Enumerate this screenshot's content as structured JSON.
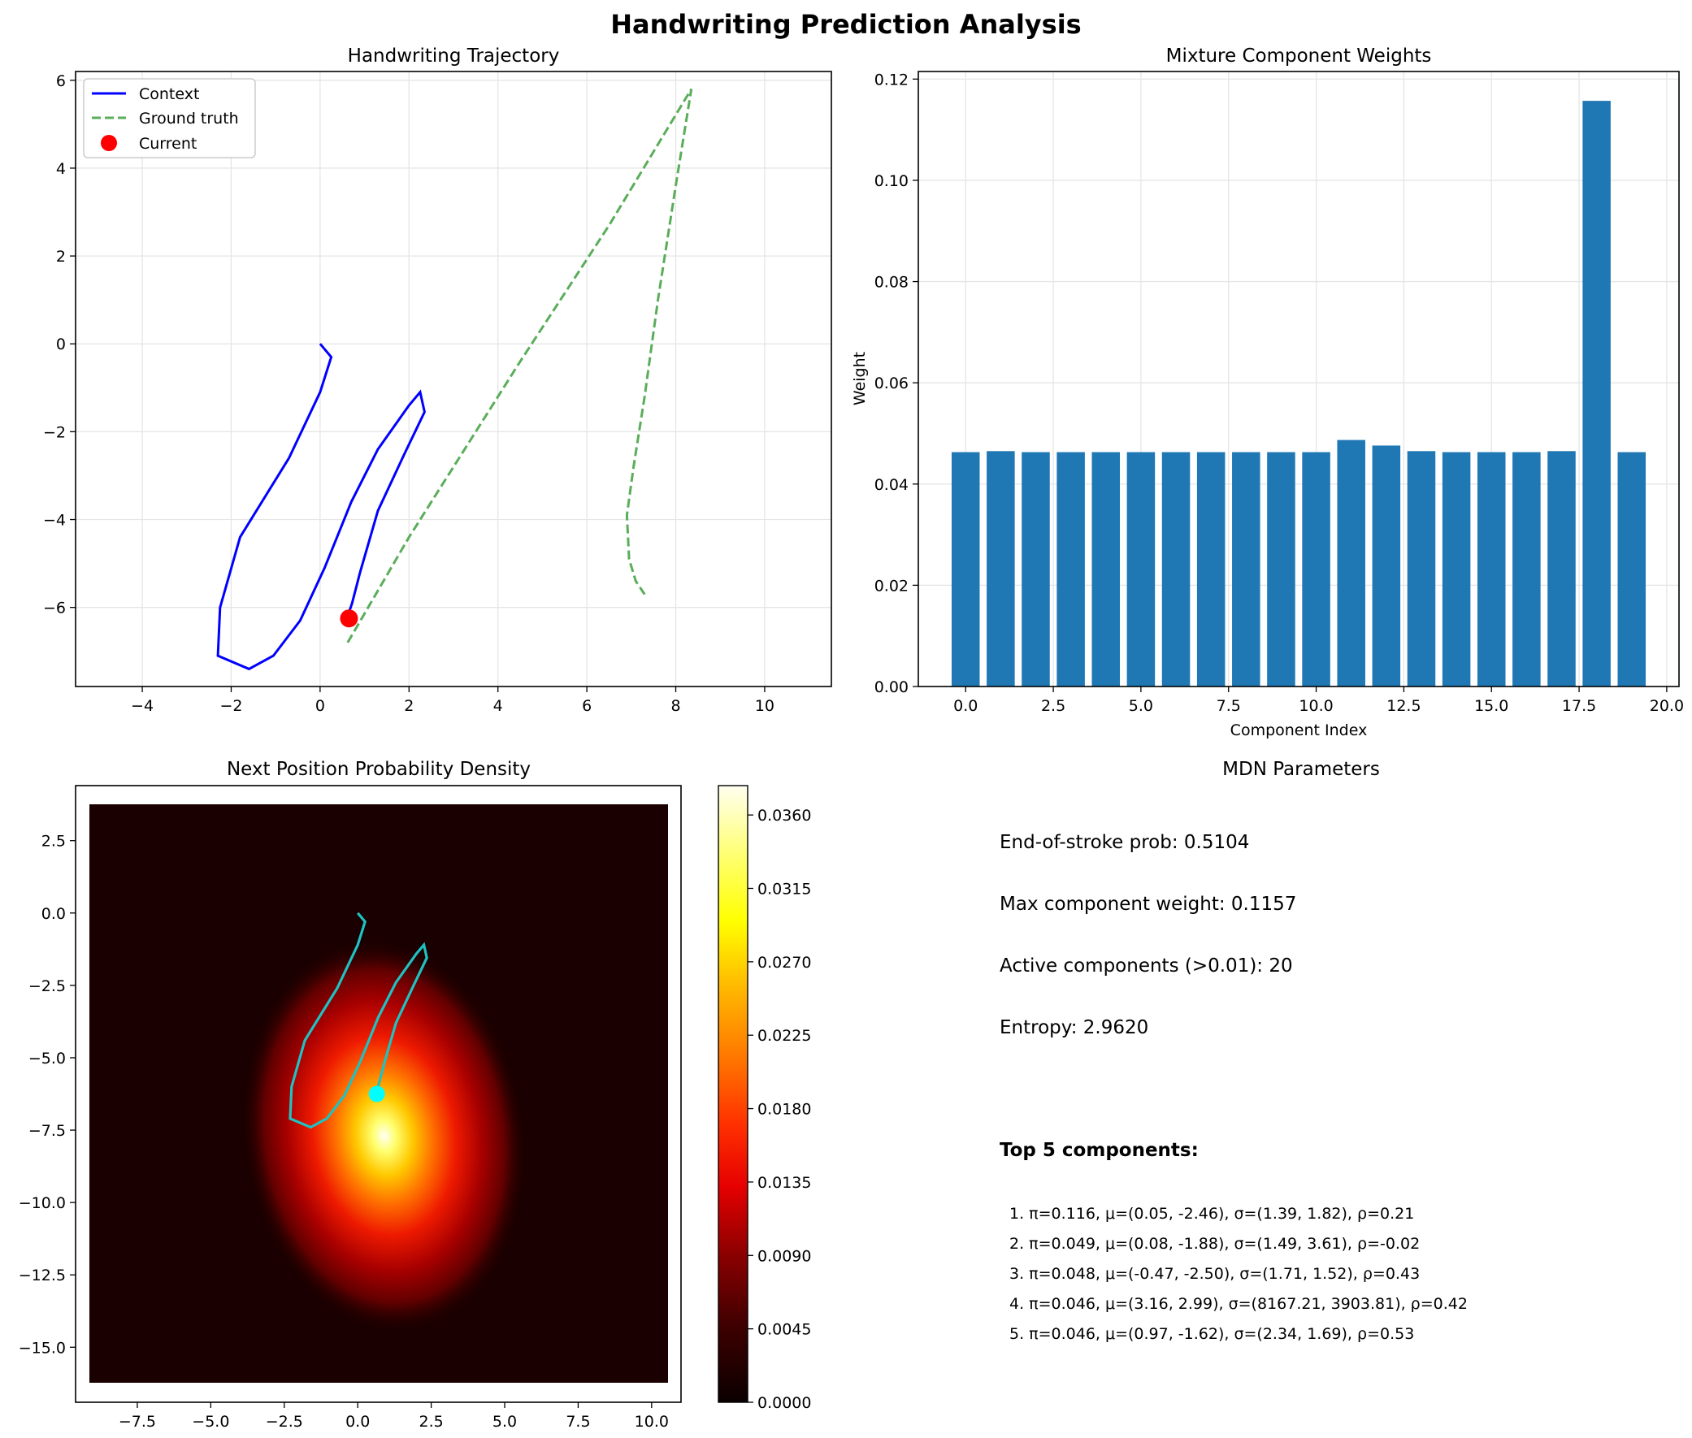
{
  "suptitle": "Handwriting Prediction Analysis",
  "chart_data": [
    {
      "type": "line",
      "title": "Handwriting Trajectory",
      "xlabel": "",
      "ylabel": "",
      "xlim": [
        -5.5,
        11.5
      ],
      "ylim": [
        -7.8,
        6.2
      ],
      "xticks": [
        -4,
        -2,
        0,
        2,
        4,
        6,
        8,
        10
      ],
      "yticks": [
        -6,
        -4,
        -2,
        0,
        2,
        4,
        6
      ],
      "grid": true,
      "legend": "top-left",
      "series": [
        {
          "name": "Context",
          "style": "solid",
          "color": "#0000ff",
          "x": [
            0.0,
            0.25,
            0.0,
            -0.7,
            -1.8,
            -2.25,
            -2.3,
            -1.6,
            -1.05,
            -0.45,
            0.1,
            0.7,
            1.3,
            2.0,
            2.25,
            2.35,
            1.9,
            1.3,
            0.9,
            0.72,
            0.62
          ],
          "y": [
            0.0,
            -0.3,
            -1.1,
            -2.6,
            -4.4,
            -6.0,
            -7.1,
            -7.4,
            -7.1,
            -6.3,
            -5.1,
            -3.6,
            -2.4,
            -1.4,
            -1.1,
            -1.55,
            -2.5,
            -3.8,
            -5.2,
            -5.9,
            -6.2
          ]
        },
        {
          "name": "Ground truth",
          "style": "dashed",
          "color": "#5aad5a",
          "x": [
            0.62,
            2.0,
            4.5,
            6.5,
            8.35,
            8.0,
            7.6,
            7.3,
            7.05,
            6.9,
            6.95,
            7.1,
            7.3
          ],
          "y": [
            -6.8,
            -4.4,
            -0.4,
            2.7,
            5.8,
            3.6,
            1.0,
            -1.2,
            -2.8,
            -3.9,
            -4.9,
            -5.4,
            -5.7
          ]
        },
        {
          "name": "Current",
          "style": "marker",
          "color": "#ff0000",
          "x": [
            0.65
          ],
          "y": [
            -6.25
          ]
        }
      ]
    },
    {
      "type": "bar",
      "title": "Mixture Component Weights",
      "xlabel": "Component Index",
      "ylabel": "Weight",
      "xlim": [
        -1.35,
        20.35
      ],
      "ylim": [
        0,
        0.1215
      ],
      "xticks": [
        "0.0",
        "2.5",
        "5.0",
        "7.5",
        "10.0",
        "12.5",
        "15.0",
        "17.5",
        "20.0"
      ],
      "yticks": [
        "0.00",
        "0.02",
        "0.04",
        "0.06",
        "0.08",
        "0.10",
        "0.12"
      ],
      "grid": true,
      "color": "#1f77b4",
      "categories": [
        0,
        1,
        2,
        3,
        4,
        5,
        6,
        7,
        8,
        9,
        10,
        11,
        12,
        13,
        14,
        15,
        16,
        17,
        18,
        19
      ],
      "values": [
        0.0463,
        0.0465,
        0.0463,
        0.0463,
        0.0463,
        0.0463,
        0.0463,
        0.0463,
        0.0463,
        0.0463,
        0.0463,
        0.0487,
        0.0476,
        0.0465,
        0.0463,
        0.0463,
        0.0463,
        0.0465,
        0.1157,
        0.0463
      ]
    },
    {
      "type": "heatmap",
      "title": "Next Position Probability Density",
      "xlabel": "",
      "ylabel": "",
      "xlim": [
        -9.6,
        11.0
      ],
      "ylim": [
        -16.9,
        4.4
      ],
      "xticks": [
        "−7.5",
        "−5.0",
        "−2.5",
        "0.0",
        "2.5",
        "5.0",
        "7.5",
        "10.0"
      ],
      "yticks": [
        "2.5",
        "0.0",
        "−2.5",
        "−5.0",
        "−7.5",
        "−10.0",
        "−12.5",
        "−15.0"
      ],
      "colormap": "hot",
      "colorbar_ticks": [
        "0.0000",
        "0.0045",
        "0.0090",
        "0.0135",
        "0.0180",
        "0.0225",
        "0.0270",
        "0.0315",
        "0.0360"
      ],
      "colorbar_max": 0.0378,
      "density_peak": [
        0.9,
        -7.7
      ],
      "overlay_color": "#1ec2c2",
      "current_color": "#00ffff"
    }
  ],
  "params": {
    "title": "MDN Parameters",
    "lines": [
      "End-of-stroke prob: 0.5104",
      "Max component weight: 0.1157",
      "Active components (>0.01): 20",
      "Entropy: 2.9620"
    ],
    "top_title": "Top 5 components:",
    "top_items": [
      "1. π=0.116, μ=(0.05, -2.46), σ=(1.39, 1.82), ρ=0.21",
      "2. π=0.049, μ=(0.08, -1.88), σ=(1.49, 3.61), ρ=-0.02",
      "3. π=0.048, μ=(-0.47, -2.50), σ=(1.71, 1.52), ρ=0.43",
      "4. π=0.046, μ=(3.16, 2.99), σ=(8167.21, 3903.81), ρ=0.42",
      "5. π=0.046, μ=(0.97, -1.62), σ=(2.34, 1.69), ρ=0.53"
    ]
  }
}
